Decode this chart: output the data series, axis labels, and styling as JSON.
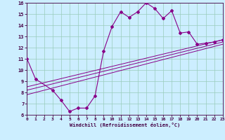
{
  "xlabel": "Windchill (Refroidissement éolien,°C)",
  "bg_color": "#cceeff",
  "line_color": "#880088",
  "grid_color": "#99ccbb",
  "xlim": [
    0,
    23
  ],
  "ylim": [
    6,
    16
  ],
  "xticks": [
    0,
    1,
    2,
    3,
    4,
    5,
    6,
    7,
    8,
    9,
    10,
    11,
    12,
    13,
    14,
    15,
    16,
    17,
    18,
    19,
    20,
    21,
    22,
    23
  ],
  "yticks": [
    6,
    7,
    8,
    9,
    10,
    11,
    12,
    13,
    14,
    15,
    16
  ],
  "curve1_x": [
    0,
    1,
    3,
    4,
    5,
    6,
    7,
    8,
    9,
    10,
    11,
    12,
    13,
    14,
    15,
    16,
    17,
    18,
    19,
    20,
    21,
    22,
    23
  ],
  "curve1_y": [
    11.0,
    9.2,
    8.2,
    7.3,
    6.3,
    6.6,
    6.6,
    7.7,
    11.7,
    13.9,
    15.2,
    14.7,
    15.2,
    16.0,
    15.5,
    14.6,
    15.3,
    13.3,
    13.4,
    12.3,
    12.4,
    12.5,
    12.7
  ],
  "line2_x": [
    0,
    23
  ],
  "line2_y": [
    8.5,
    12.7
  ],
  "line3_x": [
    0,
    23
  ],
  "line3_y": [
    8.2,
    12.5
  ],
  "line4_x": [
    0,
    23
  ],
  "line4_y": [
    7.8,
    12.3
  ]
}
